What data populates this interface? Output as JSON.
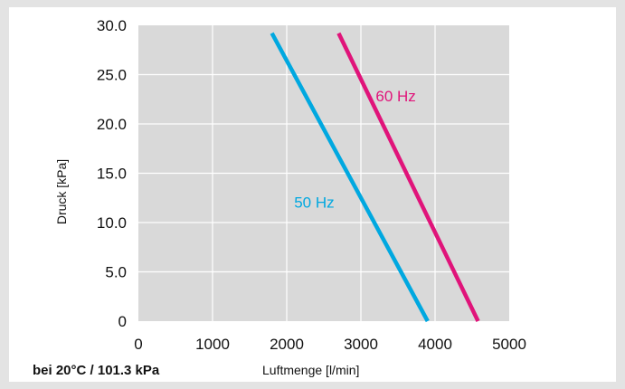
{
  "chart_data": {
    "type": "line",
    "xlabel": "Luftmenge [l/min]",
    "ylabel": "Druck [kPa]",
    "xlim": [
      0,
      5000
    ],
    "ylim": [
      0,
      30
    ],
    "x_ticks": [
      "0",
      "1000",
      "2000",
      "3000",
      "4000",
      "5000"
    ],
    "y_ticks": [
      "0",
      "5.0",
      "10.0",
      "15.0",
      "20.0",
      "25.0",
      "30.0"
    ],
    "grid": true,
    "legend": "none",
    "note": "bei 20°C / 101.3 kPa",
    "series": [
      {
        "name": "50 Hz",
        "color": "#00a8e0",
        "x": [
          1800,
          3900
        ],
        "y": [
          29.2,
          0
        ]
      },
      {
        "name": "60 Hz",
        "color": "#e0147a",
        "x": [
          2700,
          4580
        ],
        "y": [
          29.2,
          0
        ]
      }
    ]
  },
  "colors": {
    "plot_bg": "#d9d9d9",
    "grid": "#ffffff",
    "page_bg": "#e3e3e3"
  }
}
